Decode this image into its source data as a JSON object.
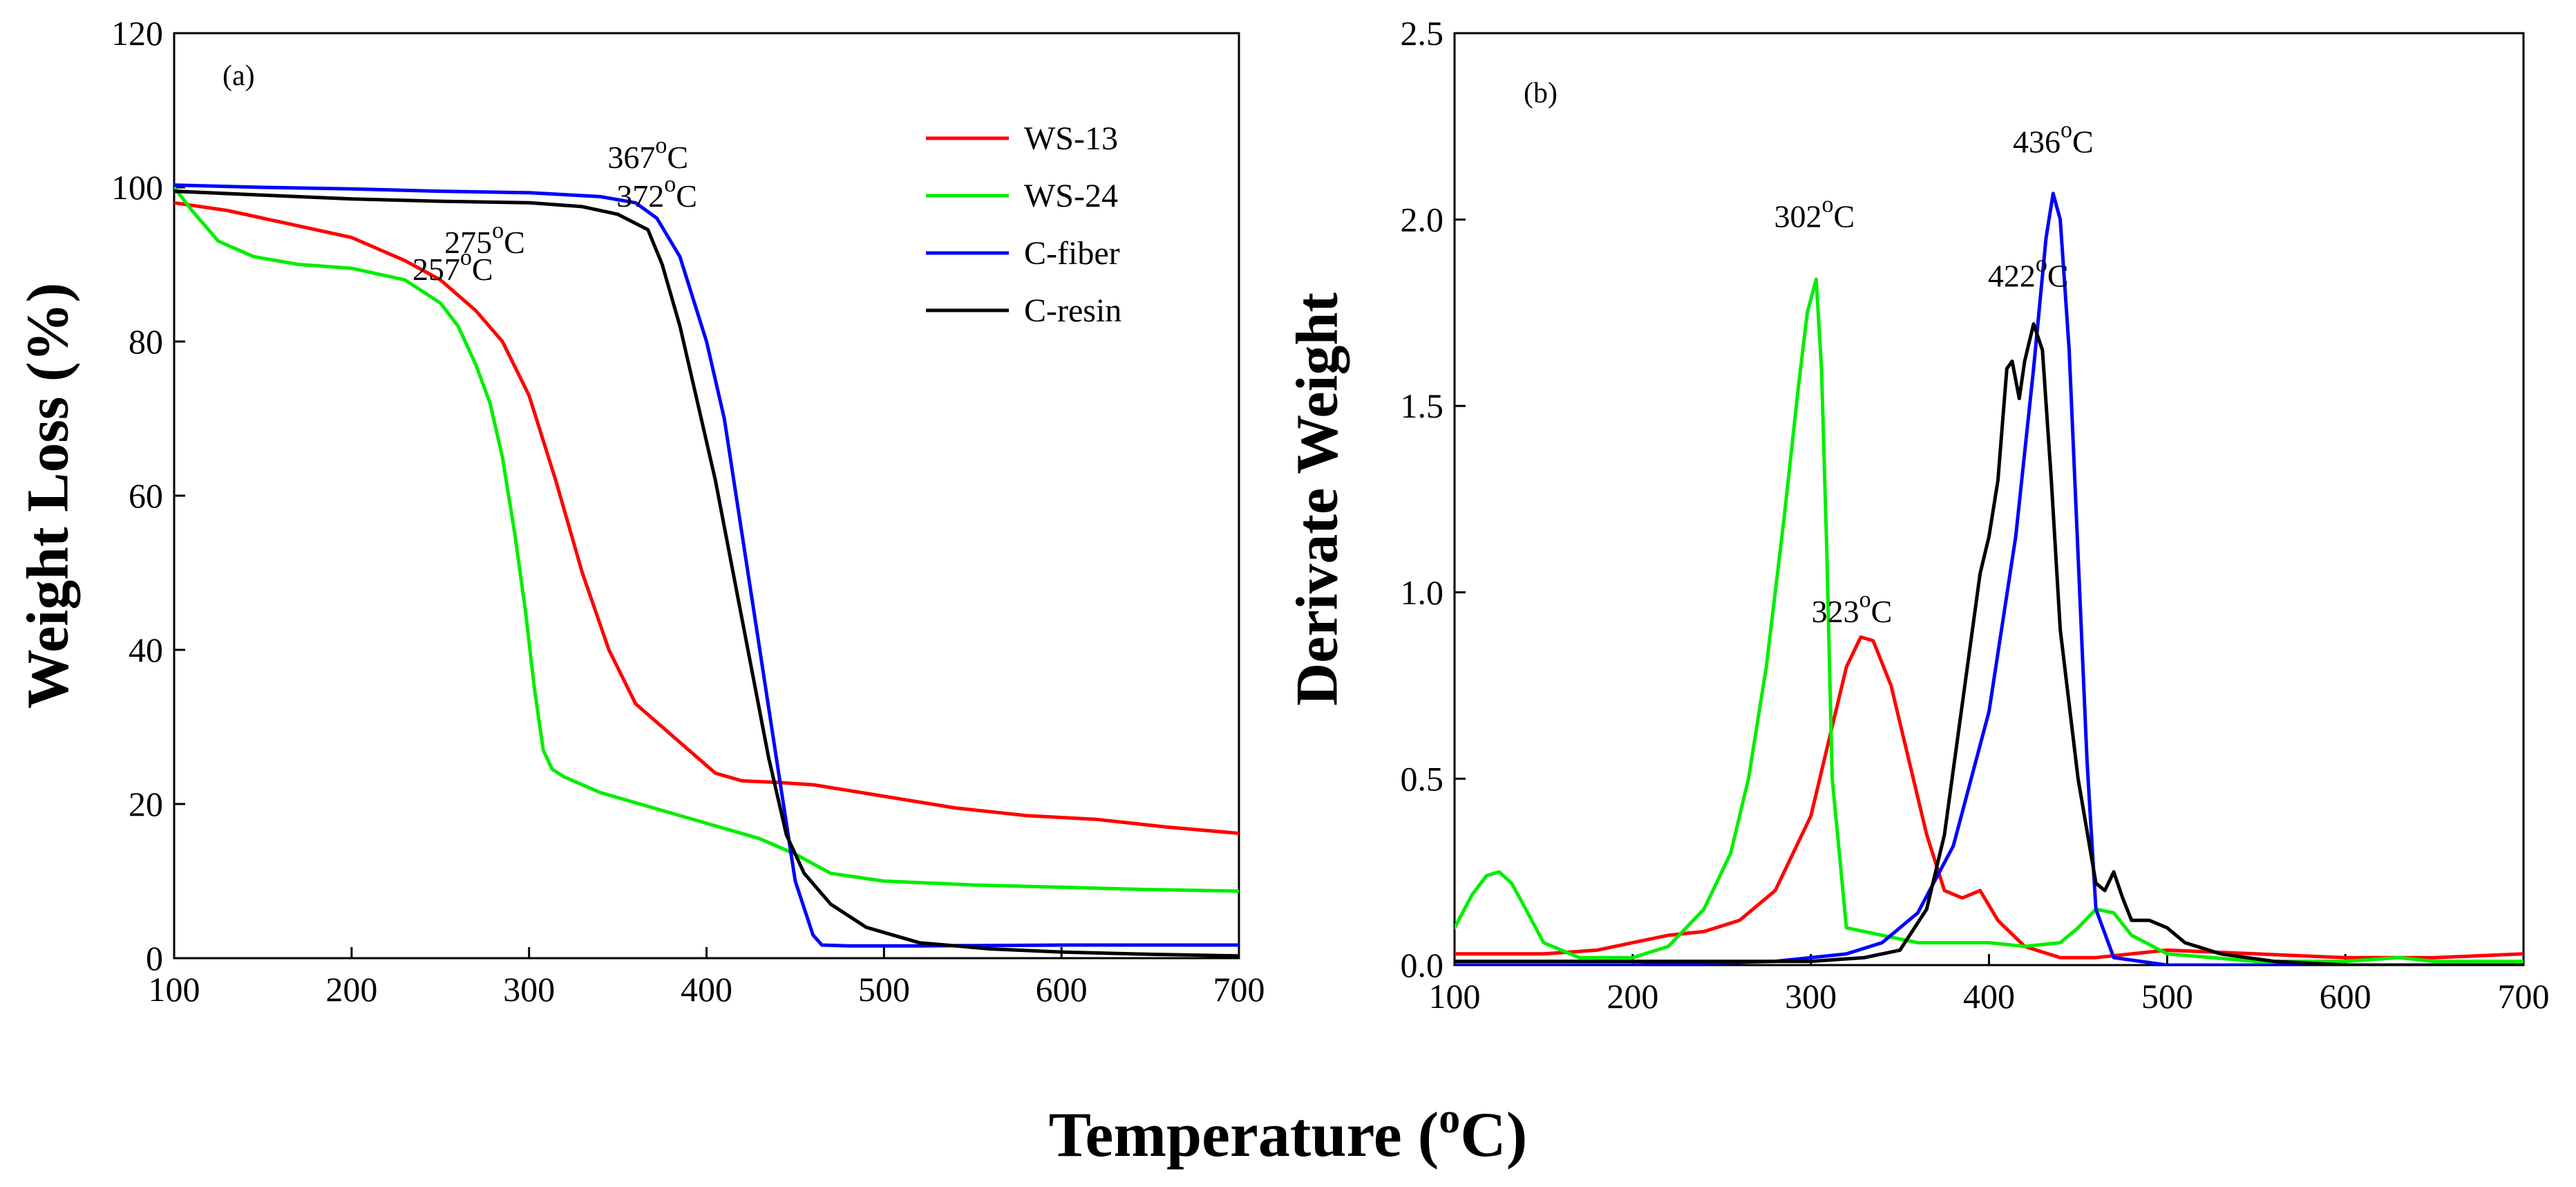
{
  "figure": {
    "xlabel": "Temperature (",
    "xlabel_sup": "o",
    "xlabel_tail": "C)"
  },
  "chart_data": [
    {
      "type": "line",
      "panel_label": "(a)",
      "ylabel": "Weight Loss (%)",
      "xlim": [
        100,
        700
      ],
      "ylim": [
        0,
        120
      ],
      "xticks": [
        100,
        200,
        300,
        400,
        500,
        600,
        700
      ],
      "yticks": [
        0,
        20,
        40,
        60,
        80,
        100,
        120
      ],
      "legend_position": "top-right",
      "series": [
        {
          "name": "WS-13",
          "color": "#ff0000",
          "x": [
            100,
            130,
            160,
            200,
            230,
            250,
            270,
            285,
            300,
            315,
            330,
            345,
            360,
            375,
            390,
            405,
            420,
            440,
            460,
            500,
            540,
            580,
            620,
            660,
            700
          ],
          "y": [
            98,
            97,
            95.5,
            93.5,
            90.5,
            88,
            84,
            80,
            73,
            62,
            50,
            40,
            33,
            30,
            27,
            24,
            23,
            22.8,
            22.5,
            21,
            19.5,
            18.5,
            18,
            17,
            16.2
          ]
        },
        {
          "name": "WS-24",
          "color": "#00ee00",
          "x": [
            100,
            110,
            125,
            145,
            170,
            200,
            230,
            250,
            260,
            270,
            278,
            285,
            292,
            298,
            303,
            308,
            313,
            320,
            340,
            370,
            400,
            430,
            450,
            470,
            500,
            550,
            600,
            650,
            700
          ],
          "y": [
            100,
            97,
            93,
            91,
            90,
            89.5,
            88,
            85,
            82,
            77,
            72,
            65,
            55,
            45,
            35,
            27,
            24.5,
            23.5,
            21.5,
            19.5,
            17.5,
            15.5,
            13.5,
            11,
            10,
            9.5,
            9.2,
            8.9,
            8.7
          ]
        },
        {
          "name": "C-fiber",
          "color": "#0000ff",
          "x": [
            100,
            150,
            200,
            250,
            300,
            340,
            360,
            372,
            385,
            400,
            410,
            420,
            430,
            440,
            450,
            460,
            465,
            480,
            520,
            600,
            700
          ],
          "y": [
            100.3,
            100,
            99.8,
            99.5,
            99.3,
            98.8,
            98,
            96,
            91,
            80,
            70,
            55,
            40,
            25,
            10,
            3,
            1.7,
            1.6,
            1.6,
            1.7,
            1.7
          ]
        },
        {
          "name": "C-resin",
          "color": "#000000",
          "x": [
            100,
            150,
            200,
            250,
            300,
            330,
            350,
            367,
            375,
            385,
            395,
            405,
            415,
            425,
            435,
            445,
            455,
            470,
            490,
            520,
            560,
            600,
            650,
            700
          ],
          "y": [
            99.5,
            99,
            98.5,
            98.2,
            98,
            97.5,
            96.5,
            94.5,
            90,
            82,
            72,
            62,
            50,
            38,
            26,
            16,
            11,
            7,
            4,
            2,
            1.2,
            0.8,
            0.5,
            0.3
          ]
        }
      ],
      "annotations": [
        {
          "text": "257",
          "sup": "o",
          "tail": "C",
          "x": 257,
          "y": 88
        },
        {
          "text": "275",
          "sup": "o",
          "tail": "C",
          "x": 275,
          "y": 91.5
        },
        {
          "text": "367",
          "sup": "o",
          "tail": "C",
          "x": 367,
          "y": 102.5
        },
        {
          "text": "372",
          "sup": "o",
          "tail": "C",
          "x": 372,
          "y": 97.5
        }
      ]
    },
    {
      "type": "line",
      "panel_label": "(b)",
      "ylabel": "Derivate Weight",
      "xlim": [
        100,
        700
      ],
      "ylim": [
        0,
        2.5
      ],
      "xticks": [
        100,
        200,
        300,
        400,
        500,
        600,
        700
      ],
      "yticks": [
        "0.0",
        "0.5",
        "1.0",
        "1.5",
        "2.0",
        "2.5"
      ],
      "series": [
        {
          "color": "#ff0000",
          "x": [
            100,
            150,
            180,
            200,
            220,
            240,
            260,
            280,
            300,
            310,
            320,
            328,
            335,
            345,
            355,
            365,
            375,
            385,
            395,
            405,
            420,
            440,
            460,
            500,
            550,
            600,
            650,
            700
          ],
          "y": [
            0.03,
            0.03,
            0.04,
            0.06,
            0.08,
            0.09,
            0.12,
            0.2,
            0.4,
            0.6,
            0.8,
            0.88,
            0.87,
            0.75,
            0.55,
            0.35,
            0.2,
            0.18,
            0.2,
            0.12,
            0.05,
            0.02,
            0.02,
            0.04,
            0.03,
            0.02,
            0.02,
            0.03
          ]
        },
        {
          "color": "#00ee00",
          "x": [
            100,
            110,
            118,
            125,
            132,
            140,
            150,
            170,
            200,
            220,
            240,
            255,
            265,
            275,
            285,
            293,
            298,
            303,
            306,
            309,
            312,
            320,
            340,
            360,
            380,
            400,
            420,
            440,
            450,
            460,
            470,
            480,
            500,
            550,
            600,
            630,
            650,
            700
          ],
          "y": [
            0.1,
            0.19,
            0.24,
            0.25,
            0.22,
            0.15,
            0.06,
            0.02,
            0.02,
            0.05,
            0.15,
            0.3,
            0.5,
            0.8,
            1.2,
            1.55,
            1.75,
            1.84,
            1.6,
            1.1,
            0.5,
            0.1,
            0.08,
            0.06,
            0.06,
            0.06,
            0.05,
            0.06,
            0.1,
            0.15,
            0.14,
            0.08,
            0.03,
            0.01,
            0.01,
            0.02,
            0.01,
            0.01
          ]
        },
        {
          "color": "#0000ff",
          "x": [
            100,
            200,
            280,
            320,
            340,
            360,
            380,
            400,
            415,
            425,
            432,
            436,
            440,
            445,
            450,
            455,
            460,
            470,
            500,
            600,
            700
          ],
          "y": [
            0,
            0,
            0.01,
            0.03,
            0.06,
            0.14,
            0.32,
            0.68,
            1.15,
            1.6,
            1.95,
            2.07,
            2.0,
            1.65,
            1.1,
            0.55,
            0.15,
            0.02,
            0,
            0,
            0
          ]
        },
        {
          "color": "#000000",
          "x": [
            100,
            150,
            200,
            250,
            300,
            330,
            350,
            365,
            375,
            385,
            395,
            400,
            405,
            410,
            413,
            417,
            420,
            425,
            430,
            435,
            440,
            450,
            460,
            465,
            470,
            475,
            480,
            490,
            500,
            510,
            530,
            560,
            600,
            650,
            700
          ],
          "y": [
            0.01,
            0.01,
            0.01,
            0.01,
            0.01,
            0.02,
            0.04,
            0.15,
            0.35,
            0.7,
            1.05,
            1.15,
            1.3,
            1.6,
            1.62,
            1.52,
            1.62,
            1.72,
            1.65,
            1.3,
            0.9,
            0.5,
            0.22,
            0.2,
            0.25,
            0.18,
            0.12,
            0.12,
            0.1,
            0.06,
            0.03,
            0.01,
            0,
            0,
            0
          ]
        }
      ],
      "annotations": [
        {
          "text": "302",
          "sup": "o",
          "tail": "C",
          "x": 302,
          "y": 1.98
        },
        {
          "text": "323",
          "sup": "o",
          "tail": "C",
          "x": 323,
          "y": 0.92
        },
        {
          "text": "422",
          "sup": "o",
          "tail": "C",
          "x": 422,
          "y": 1.82
        },
        {
          "text": "436",
          "sup": "o",
          "tail": "C",
          "x": 436,
          "y": 2.18
        }
      ]
    }
  ]
}
